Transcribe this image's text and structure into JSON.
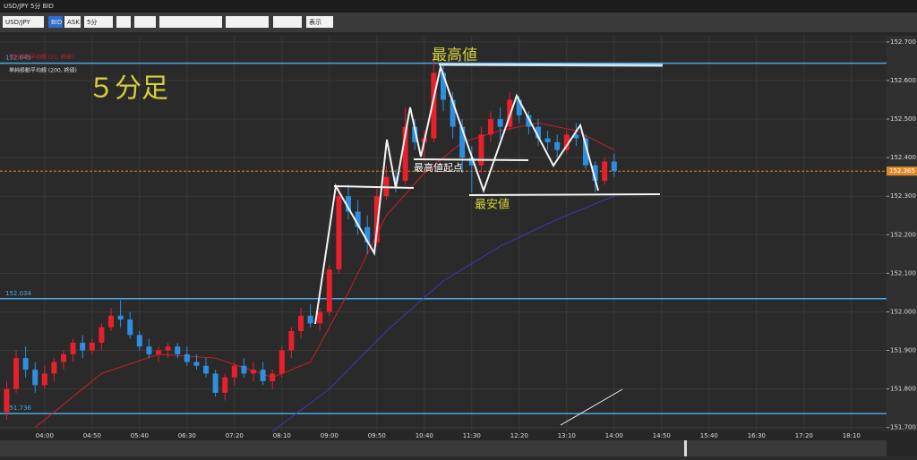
{
  "window_title": "USD/JPY 5分 BID",
  "toolbar": {
    "symbol": "USD/JPY",
    "bid": "BID",
    "ask": "ASK",
    "interval": "5分",
    "view": "表示"
  },
  "chart_data": {
    "type": "candlestick",
    "x": [
      "03:20",
      "03:30",
      "03:40",
      "03:50",
      "04:00",
      "04:10",
      "04:20",
      "04:30",
      "04:40",
      "04:50",
      "05:00",
      "05:10",
      "05:20",
      "05:30",
      "05:40",
      "05:50",
      "06:00",
      "06:10",
      "06:20",
      "06:30",
      "06:40",
      "06:50",
      "07:00",
      "07:10",
      "07:20",
      "07:30",
      "07:40",
      "07:50",
      "08:00",
      "08:10",
      "08:20",
      "08:30",
      "08:40",
      "08:50",
      "09:00",
      "09:10",
      "09:20",
      "09:30",
      "09:40",
      "09:50",
      "10:00",
      "10:10",
      "10:20",
      "10:30",
      "10:40",
      "10:50",
      "11:00",
      "11:10",
      "11:20",
      "11:30",
      "11:40",
      "11:50",
      "12:00",
      "12:10",
      "12:20",
      "12:30",
      "12:40",
      "12:50",
      "13:00",
      "13:10",
      "13:20",
      "13:30",
      "13:40",
      "13:50",
      "14:00"
    ],
    "open": [
      151.74,
      151.8,
      151.88,
      151.85,
      151.81,
      151.84,
      151.87,
      151.89,
      151.92,
      151.9,
      151.92,
      151.96,
      151.99,
      151.98,
      151.94,
      151.91,
      151.89,
      151.9,
      151.91,
      151.89,
      151.87,
      151.86,
      151.84,
      151.79,
      151.83,
      151.86,
      151.84,
      151.85,
      151.82,
      151.84,
      151.9,
      151.95,
      151.99,
      151.97,
      152.0,
      152.11,
      152.3,
      152.26,
      152.22,
      152.18,
      152.3,
      152.35,
      152.34,
      152.48,
      152.44,
      152.45,
      152.62,
      152.55,
      152.48,
      152.4,
      152.38,
      152.46,
      152.5,
      152.48,
      152.55,
      152.51,
      152.48,
      152.45,
      152.44,
      152.42,
      152.46,
      152.45,
      152.38,
      152.34,
      152.39
    ],
    "high": [
      151.82,
      151.9,
      151.91,
      151.87,
      151.86,
      151.88,
      151.9,
      151.93,
      151.94,
      151.93,
      151.97,
      152.01,
      152.03,
      152.0,
      151.95,
      151.93,
      151.91,
      151.92,
      151.92,
      151.91,
      151.89,
      151.88,
      151.85,
      151.84,
      151.87,
      151.88,
      151.87,
      151.87,
      151.85,
      151.91,
      151.96,
      152.01,
      152.02,
      152.01,
      152.12,
      152.33,
      152.33,
      152.29,
      152.25,
      152.32,
      152.38,
      152.37,
      152.53,
      152.5,
      152.47,
      152.66,
      152.64,
      152.57,
      152.5,
      152.43,
      152.48,
      152.52,
      152.53,
      152.57,
      152.56,
      152.52,
      152.5,
      152.47,
      152.46,
      152.47,
      152.49,
      152.46,
      152.39,
      152.4,
      152.41
    ],
    "low": [
      151.72,
      151.79,
      151.83,
      151.79,
      151.8,
      151.82,
      151.85,
      151.87,
      151.88,
      151.89,
      151.9,
      151.95,
      151.96,
      151.93,
      151.9,
      151.88,
      151.87,
      151.88,
      151.88,
      151.86,
      151.85,
      151.83,
      151.78,
      151.77,
      151.81,
      151.83,
      151.82,
      151.81,
      151.8,
      151.83,
      151.88,
      151.93,
      151.96,
      151.95,
      151.99,
      152.1,
      152.24,
      152.2,
      152.15,
      152.17,
      152.29,
      152.31,
      152.33,
      152.42,
      152.39,
      152.44,
      152.52,
      152.45,
      152.36,
      152.31,
      152.36,
      152.44,
      152.45,
      152.47,
      152.49,
      152.46,
      152.43,
      152.42,
      152.4,
      152.41,
      152.43,
      152.37,
      152.31,
      152.33,
      152.35
    ],
    "close": [
      151.8,
      151.88,
      151.85,
      151.81,
      151.84,
      151.87,
      151.89,
      151.92,
      151.9,
      151.92,
      151.96,
      151.99,
      151.98,
      151.94,
      151.91,
      151.89,
      151.9,
      151.91,
      151.89,
      151.87,
      151.86,
      151.84,
      151.79,
      151.83,
      151.86,
      151.84,
      151.85,
      151.82,
      151.84,
      151.9,
      151.95,
      151.99,
      151.97,
      152.0,
      152.11,
      152.3,
      152.26,
      152.22,
      152.18,
      152.3,
      152.35,
      152.34,
      152.48,
      152.44,
      152.45,
      152.62,
      152.55,
      152.48,
      152.4,
      152.38,
      152.46,
      152.5,
      152.48,
      152.55,
      152.51,
      152.48,
      152.45,
      152.44,
      152.42,
      152.46,
      152.45,
      152.38,
      152.34,
      152.39,
      152.365
    ],
    "up_color": "#e8202a",
    "down_color": "#2e8fe0",
    "series": [
      {
        "name": "単純移動平均線 (21, 終値)",
        "color": "#c8202a",
        "x": [
          "03:50",
          "05:00",
          "06:00",
          "07:00",
          "08:00",
          "08:40",
          "09:20",
          "10:00",
          "10:40",
          "11:20",
          "12:00",
          "12:40",
          "13:20",
          "14:00"
        ],
        "values": [
          151.7,
          151.84,
          151.89,
          151.88,
          151.83,
          151.87,
          152.05,
          152.25,
          152.36,
          152.44,
          152.47,
          152.49,
          152.47,
          152.42
        ]
      },
      {
        "name": "単純移動平均線 (200, 終値)",
        "color": "#3c3cb4",
        "x": [
          "08:00",
          "09:00",
          "10:00",
          "11:00",
          "12:00",
          "13:00",
          "14:00"
        ],
        "values": [
          151.69,
          151.8,
          151.95,
          152.08,
          152.17,
          152.24,
          152.3
        ]
      }
    ],
    "levels": [
      152.645,
      152.034,
      151.736
    ],
    "level_color": "#4aa8e8",
    "last_price": 152.365,
    "xlim": [
      "03:13",
      "18:47"
    ],
    "xticks": [
      "04:00",
      "04:50",
      "05:40",
      "06:30",
      "07:20",
      "08:10",
      "09:00",
      "09:50",
      "10:40",
      "11:30",
      "12:20",
      "13:10",
      "14:00",
      "14:50",
      "15:40",
      "16:30",
      "17:20",
      "18:10"
    ],
    "ylim": [
      151.69,
      152.716
    ],
    "yticks": [
      {
        "value": 151.7,
        "label": "151.700"
      },
      {
        "value": 151.8,
        "label": "151.800"
      },
      {
        "value": 151.9,
        "label": "151.900"
      },
      {
        "value": 152.0,
        "label": "152.000"
      },
      {
        "value": 152.1,
        "label": "152.100"
      },
      {
        "value": 152.2,
        "label": "152.200"
      },
      {
        "value": 152.3,
        "label": "152.300"
      },
      {
        "value": 152.4,
        "label": "152.400"
      },
      {
        "value": 152.5,
        "label": "152.500"
      },
      {
        "value": 152.6,
        "label": "152.600"
      },
      {
        "value": 152.7,
        "label": "152.700"
      }
    ],
    "grid": true,
    "annotations": {
      "timeframe": "５分足",
      "high": "最高値",
      "high_origin": "最高値起点",
      "low": "最安値"
    }
  }
}
